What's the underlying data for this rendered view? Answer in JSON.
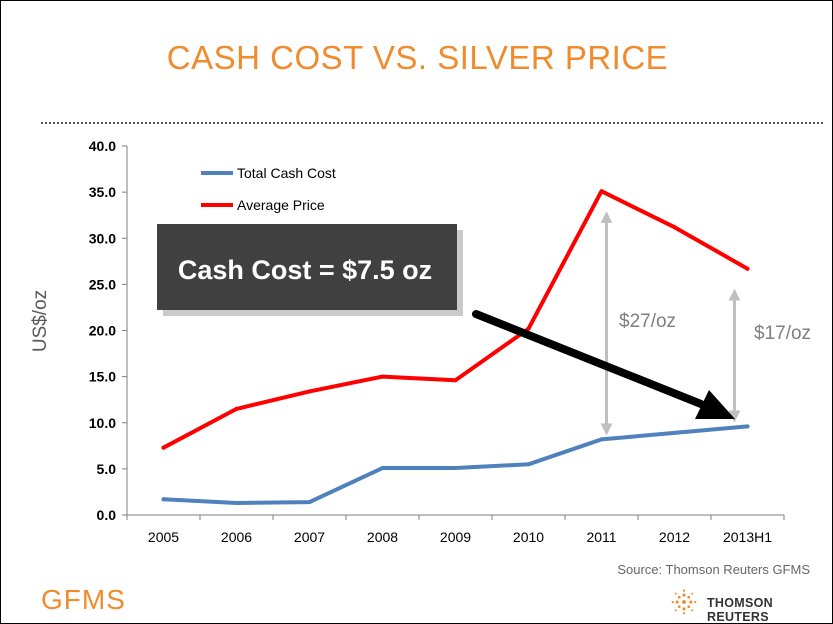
{
  "slide": {
    "title": "CASH COST VS. SILVER PRICE",
    "source": "Source: Thomson Reuters GFMS",
    "gfms_logo": "GFMS",
    "tr_logo": "THOMSON REUTERS"
  },
  "chart_data": {
    "type": "line",
    "title": "CASH COST VS. SILVER PRICE",
    "xlabel": "",
    "ylabel": "US$/oz",
    "categories": [
      "2005",
      "2006",
      "2007",
      "2008",
      "2009",
      "2010",
      "2011",
      "2012",
      "2013H1"
    ],
    "ylim": [
      0,
      40
    ],
    "yticks": [
      "0.0",
      "5.0",
      "10.0",
      "15.0",
      "20.0",
      "25.0",
      "30.0",
      "35.0",
      "40.0"
    ],
    "grid": false,
    "legend_position": "top-left",
    "series": [
      {
        "name": "Total Cash Cost",
        "color": "#4f81bd",
        "values": [
          1.7,
          1.3,
          1.4,
          5.1,
          5.1,
          5.5,
          8.2,
          8.9,
          9.6
        ]
      },
      {
        "name": "Average Price",
        "color": "#ff0000",
        "values": [
          7.3,
          11.5,
          13.4,
          15.0,
          14.6,
          20.2,
          35.1,
          31.2,
          26.7
        ]
      }
    ],
    "annotations": {
      "callout": "Cash Cost = $7.5 oz",
      "gap_2011": "$27/oz",
      "gap_2013": "$17/oz"
    }
  }
}
